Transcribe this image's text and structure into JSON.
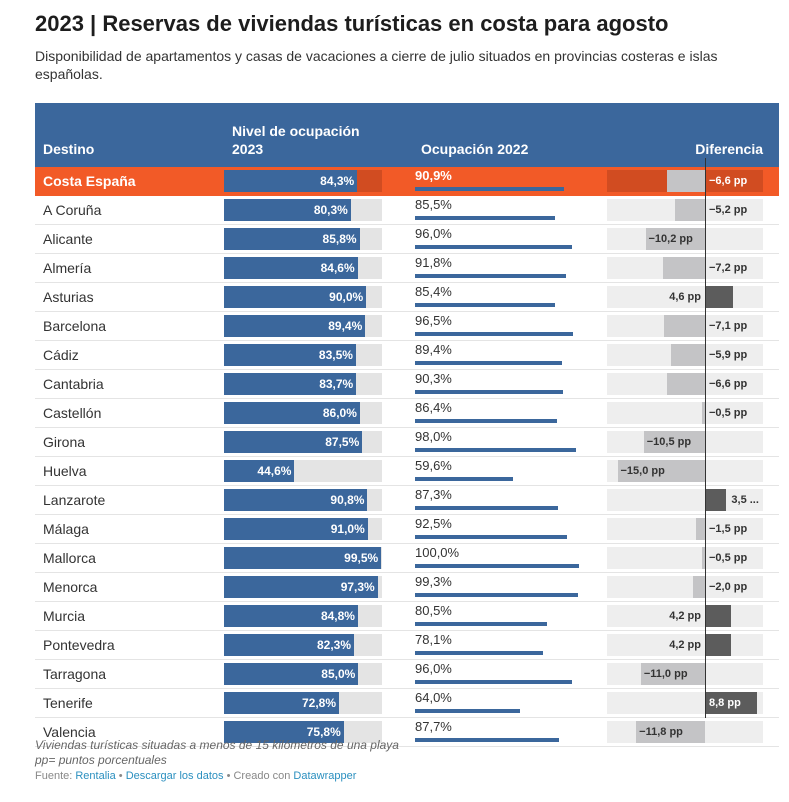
{
  "title": "2023 | Reservas de viviendas turísticas en costa para agosto",
  "subtitle": "Disponibilidad de apartamentos y casas de vacaciones a cierre de julio situados en provincias costeras e islas españolas.",
  "columns": {
    "destino": "Destino",
    "nivel_line1": "Nivel de ocupación",
    "nivel_line2": "2023",
    "ocupacion2022": "Ocupación 2022",
    "diferencia": "Diferencia"
  },
  "chart_data": {
    "type": "table",
    "highlight": "Costa España",
    "axis_ranges": {
      "ocupacion_2023": [
        0,
        100
      ],
      "ocupacion_2022": [
        0,
        100
      ],
      "diferencia": [
        -17,
        9
      ]
    },
    "rows": [
      {
        "destino": "Costa España",
        "occ2023": 84.3,
        "occ2023_label": "84,3%",
        "occ2022": 90.9,
        "occ2022_label": "90,9%",
        "diff": -6.6,
        "diff_label": "−6,6 pp"
      },
      {
        "destino": "A Coruña",
        "occ2023": 80.3,
        "occ2023_label": "80,3%",
        "occ2022": 85.5,
        "occ2022_label": "85,5%",
        "diff": -5.2,
        "diff_label": "−5,2 pp"
      },
      {
        "destino": "Alicante",
        "occ2023": 85.8,
        "occ2023_label": "85,8%",
        "occ2022": 96.0,
        "occ2022_label": "96,0%",
        "diff": -10.2,
        "diff_label": "−10,2 pp"
      },
      {
        "destino": "Almería",
        "occ2023": 84.6,
        "occ2023_label": "84,6%",
        "occ2022": 91.8,
        "occ2022_label": "91,8%",
        "diff": -7.2,
        "diff_label": "−7,2 pp"
      },
      {
        "destino": "Asturias",
        "occ2023": 90.0,
        "occ2023_label": "90,0%",
        "occ2022": 85.4,
        "occ2022_label": "85,4%",
        "diff": 4.6,
        "diff_label": "4,6 pp"
      },
      {
        "destino": "Barcelona",
        "occ2023": 89.4,
        "occ2023_label": "89,4%",
        "occ2022": 96.5,
        "occ2022_label": "96,5%",
        "diff": -7.1,
        "diff_label": "−7,1 pp"
      },
      {
        "destino": "Cádiz",
        "occ2023": 83.5,
        "occ2023_label": "83,5%",
        "occ2022": 89.4,
        "occ2022_label": "89,4%",
        "diff": -5.9,
        "diff_label": "−5,9 pp"
      },
      {
        "destino": "Cantabria",
        "occ2023": 83.7,
        "occ2023_label": "83,7%",
        "occ2022": 90.3,
        "occ2022_label": "90,3%",
        "diff": -6.6,
        "diff_label": "−6,6 pp"
      },
      {
        "destino": "Castellón",
        "occ2023": 86.0,
        "occ2023_label": "86,0%",
        "occ2022": 86.4,
        "occ2022_label": "86,4%",
        "diff": -0.5,
        "diff_label": "−0,5 pp"
      },
      {
        "destino": "Girona",
        "occ2023": 87.5,
        "occ2023_label": "87,5%",
        "occ2022": 98.0,
        "occ2022_label": "98,0%",
        "diff": -10.5,
        "diff_label": "−10,5 pp"
      },
      {
        "destino": "Huelva",
        "occ2023": 44.6,
        "occ2023_label": "44,6%",
        "occ2022": 59.6,
        "occ2022_label": "59,6%",
        "diff": -15.0,
        "diff_label": "−15,0 pp"
      },
      {
        "destino": "Lanzarote",
        "occ2023": 90.8,
        "occ2023_label": "90,8%",
        "occ2022": 87.3,
        "occ2022_label": "87,3%",
        "diff": 3.5,
        "diff_label": "3,5 ..."
      },
      {
        "destino": "Málaga",
        "occ2023": 91.0,
        "occ2023_label": "91,0%",
        "occ2022": 92.5,
        "occ2022_label": "92,5%",
        "diff": -1.5,
        "diff_label": "−1,5 pp"
      },
      {
        "destino": "Mallorca",
        "occ2023": 99.5,
        "occ2023_label": "99,5%",
        "occ2022": 100.0,
        "occ2022_label": "100,0%",
        "diff": -0.5,
        "diff_label": "−0,5 pp"
      },
      {
        "destino": "Menorca",
        "occ2023": 97.3,
        "occ2023_label": "97,3%",
        "occ2022": 99.3,
        "occ2022_label": "99,3%",
        "diff": -2.0,
        "diff_label": "−2,0 pp"
      },
      {
        "destino": "Murcia",
        "occ2023": 84.8,
        "occ2023_label": "84,8%",
        "occ2022": 80.5,
        "occ2022_label": "80,5%",
        "diff": 4.2,
        "diff_label": "4,2 pp"
      },
      {
        "destino": "Pontevedra",
        "occ2023": 82.3,
        "occ2023_label": "82,3%",
        "occ2022": 78.1,
        "occ2022_label": "78,1%",
        "diff": 4.2,
        "diff_label": "4,2 pp"
      },
      {
        "destino": "Tarragona",
        "occ2023": 85.0,
        "occ2023_label": "85,0%",
        "occ2022": 96.0,
        "occ2022_label": "96,0%",
        "diff": -11.0,
        "diff_label": "−11,0 pp"
      },
      {
        "destino": "Tenerife",
        "occ2023": 72.8,
        "occ2023_label": "72,8%",
        "occ2022": 64.0,
        "occ2022_label": "64,0%",
        "diff": 8.8,
        "diff_label": "8,8 pp"
      },
      {
        "destino": "Valencia",
        "occ2023": 75.8,
        "occ2023_label": "75,8%",
        "occ2022": 87.7,
        "occ2022_label": "87,7%",
        "diff": -11.8,
        "diff_label": "−11,8 pp"
      }
    ]
  },
  "notes": {
    "line1": "Viviendas turísticas situadas a menos de 15 kilómetros de una playa",
    "line2": "pp= puntos porcentuales"
  },
  "source": {
    "prefix": "Fuente: ",
    "source_link": "Rentalia",
    "sep1": " • ",
    "download_link": "Descargar los datos",
    "sep2": " • Creado con ",
    "tool_link": "Datawrapper"
  },
  "colors": {
    "header": "#3b679c",
    "bar": "#3b679c",
    "highlight": "#f25a27",
    "negative": "#c4c4c6",
    "positive": "#5c5c5c"
  }
}
